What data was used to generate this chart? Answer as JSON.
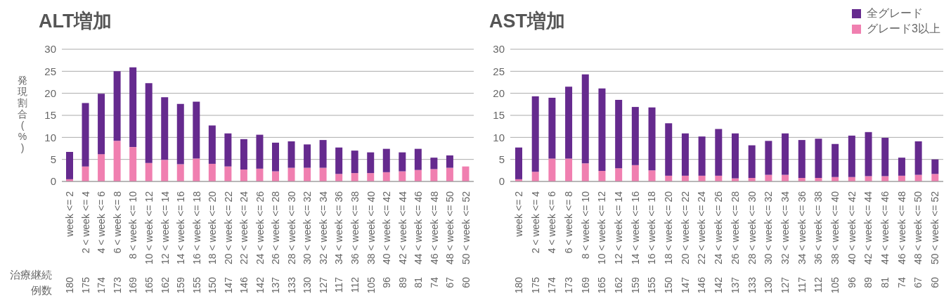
{
  "chart_data": [
    {
      "type": "bar",
      "title": "ALT増加",
      "ylabel": "発現割合(%)",
      "stacked": true,
      "grid": "y",
      "legend": false,
      "ylim": [
        0,
        30
      ],
      "yticks": [
        0,
        5,
        10,
        15,
        20,
        25,
        30
      ],
      "categories": [
        "week <= 2",
        "2 < week <= 4",
        "4 < week <= 6",
        "6 < week <= 8",
        "8 < week <= 10",
        "10 < week <= 12",
        "12 < week <= 14",
        "14 < week <= 16",
        "16 < week <= 18",
        "18 < week <= 20",
        "20 < week <= 22",
        "22 < week <= 24",
        "24 < week <= 26",
        "26 < week <= 28",
        "28 < week <= 30",
        "30 < week <= 32",
        "32 < week <= 34",
        "34 < week <= 36",
        "36 < week <= 38",
        "38 < week <= 40",
        "40 < week <= 42",
        "42 < week <= 44",
        "44 < week <= 46",
        "46 < week <= 48",
        "48 < week <= 50",
        "50 < week <= 52"
      ],
      "series": [
        {
          "color": "#f07fb0",
          "values": [
            0.5,
            3.4,
            6.2,
            9.2,
            7.8,
            4.2,
            4.9,
            3.9,
            5.2,
            4.0,
            3.4,
            2.7,
            2.9,
            2.3,
            3.1,
            3.1,
            3.1,
            1.7,
            1.9,
            1.9,
            2.1,
            2.3,
            2.6,
            2.8,
            3.1,
            3.4
          ]
        },
        {
          "color": "#652a8e",
          "values": [
            6.2,
            14.4,
            13.7,
            15.8,
            18.1,
            18.1,
            14.2,
            13.7,
            12.9,
            8.7,
            7.5,
            6.9,
            7.7,
            6.5,
            6.0,
            5.3,
            6.3,
            6.0,
            5.1,
            4.7,
            5.3,
            4.3,
            4.8,
            2.6,
            2.8,
            0
          ]
        }
      ],
      "annotations": [
        "治療継続例数",
        "180",
        "175",
        "174",
        "173",
        "169",
        "165",
        "162",
        "159",
        "155",
        "150",
        "147",
        "146",
        "142",
        "137",
        "133",
        "130",
        "127",
        "117",
        "112",
        "105",
        "96",
        "89",
        "81",
        "74",
        "67",
        "60"
      ]
    },
    {
      "type": "bar",
      "title": "AST増加",
      "stacked": true,
      "grid": "y",
      "legend": "top right",
      "ylim": [
        0,
        30
      ],
      "yticks": [
        0,
        5,
        10,
        15,
        20,
        25,
        30
      ],
      "categories": [
        "week <= 2",
        "2 < week <= 4",
        "4 < week <= 6",
        "6 < week <= 8",
        "8 < week <= 10",
        "10 < week <= 12",
        "12 < week <= 14",
        "14 < week <= 16",
        "16 < week <= 18",
        "18 < week <= 20",
        "20 < week <= 22",
        "22 < week <= 24",
        "24 < week <= 26",
        "26 < week <= 28",
        "28 < week <= 30",
        "30 < week <= 32",
        "32 < week <= 34",
        "34 < week <= 36",
        "36 < week <= 38",
        "38 < week <= 40",
        "40 < week <= 42",
        "42 < week <= 44",
        "44 < week <= 46",
        "46 < week <= 48",
        "48 < week <= 50",
        "50 < week <= 52"
      ],
      "series": [
        {
          "name": "グレード3以上",
          "color": "#f07fb0",
          "values": [
            0.5,
            2.2,
            5.2,
            5.2,
            4.1,
            2.4,
            3.0,
            3.7,
            2.5,
            1.3,
            1.3,
            1.3,
            1.3,
            0.7,
            0.8,
            1.5,
            1.5,
            0.8,
            0.8,
            1.0,
            1.0,
            1.2,
            1.2,
            1.3,
            1.5,
            1.7
          ]
        },
        {
          "name": "全グレード",
          "color": "#652a8e",
          "values": [
            7.2,
            17.1,
            13.8,
            16.3,
            20.2,
            18.7,
            15.5,
            13.2,
            14.3,
            11.9,
            9.6,
            8.9,
            10.6,
            10.2,
            7.4,
            7.7,
            9.4,
            8.6,
            8.9,
            7.5,
            9.4,
            10.0,
            8.7,
            4.1,
            7.6,
            3.3
          ]
        }
      ],
      "annotations": [
        "180",
        "175",
        "174",
        "173",
        "169",
        "165",
        "162",
        "159",
        "155",
        "150",
        "147",
        "146",
        "142",
        "137",
        "133",
        "130",
        "127",
        "117",
        "112",
        "105",
        "96",
        "89",
        "81",
        "74",
        "67",
        "60"
      ]
    }
  ]
}
